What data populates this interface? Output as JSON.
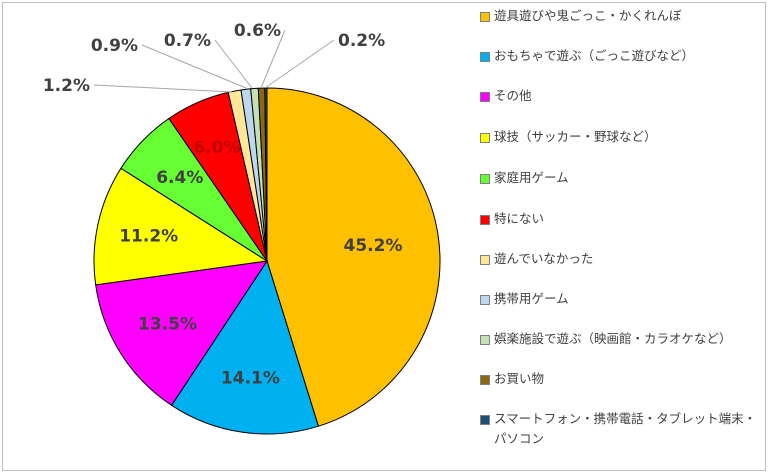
{
  "chart_data": {
    "type": "pie",
    "categories": [
      "遊具遊びや鬼ごっこ・かくれんぼ",
      "おもちゃで遊ぶ（ごっこ遊びなど）",
      "その他",
      "球技（サッカー・野球など）",
      "家庭用ゲーム",
      "特にない",
      "遊んでいなかった",
      "携帯用ゲーム",
      "娯楽施設で遊ぶ（映画館・カラオケなど）",
      "お買い物",
      "スマートフォン・携帯電話・タブレット端末・パソコン"
    ],
    "values": [
      45.2,
      14.1,
      13.5,
      11.2,
      6.4,
      6.0,
      1.2,
      0.9,
      0.7,
      0.6,
      0.2
    ],
    "labels": [
      "45.2%",
      "14.1%",
      "13.5%",
      "11.2%",
      "6.4%",
      "6.0%",
      "1.2%",
      "0.9%",
      "0.7%",
      "0.6%",
      "0.2%"
    ],
    "colors": [
      "#FFC000",
      "#00B0F0",
      "#FF00FF",
      "#FFFF00",
      "#66FF33",
      "#FF0000",
      "#FFE699",
      "#BDD7EE",
      "#C5E0B4",
      "#8B6914",
      "#1F4E79"
    ],
    "label_colors": [
      "#404040",
      "#404040",
      "#404040",
      "#404040",
      "#404040",
      "#C00000",
      "#404040",
      "#404040",
      "#404040",
      "#404040",
      "#404040"
    ],
    "legend_position": "right",
    "start_angle": "12 o'clock, clockwise"
  }
}
